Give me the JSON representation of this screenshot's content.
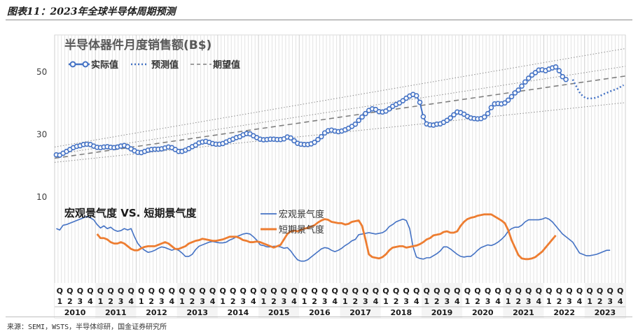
{
  "figure_title": "图表11：2023年全球半导体周期预测",
  "source": "来源：SEMI，WSTS，半导体综研，国金证券研究所",
  "chart_data": [
    {
      "type": "line",
      "title": "半导体器件月度销售额(B$)",
      "legend": {
        "placement": "top-left",
        "entries": [
          "实际值",
          "预测值",
          "期望值"
        ]
      },
      "yticks": [
        10,
        30,
        50
      ],
      "ylim": [
        10,
        58
      ],
      "x_range": [
        "2010-01",
        "2023-12"
      ],
      "grid": "vertical monthly",
      "colors": {
        "actual": "#4472c4",
        "forecast": "#4472c4",
        "trend": "#7f7f7f",
        "band": "#8c8c8c"
      },
      "actual": {
        "name": "实际值",
        "start": "2010-01",
        "values": [
          23.5,
          23.4,
          24.0,
          24.6,
          25.2,
          25.8,
          26.2,
          26.4,
          26.8,
          26.9,
          26.8,
          26.3,
          25.9,
          25.8,
          26.0,
          26.1,
          25.9,
          25.8,
          26.0,
          26.3,
          26.5,
          26.1,
          25.4,
          24.8,
          24.3,
          24.2,
          24.6,
          25.0,
          25.2,
          25.3,
          25.3,
          25.4,
          25.7,
          26.0,
          25.8,
          25.2,
          24.6,
          24.6,
          25.0,
          25.5,
          26.1,
          26.6,
          27.3,
          27.6,
          27.8,
          27.5,
          27.1,
          26.9,
          26.9,
          27.1,
          27.6,
          28.1,
          28.5,
          29.0,
          29.3,
          29.9,
          30.3,
          30.2,
          29.6,
          29.0,
          28.5,
          28.3,
          28.4,
          28.5,
          28.5,
          28.4,
          28.4,
          28.6,
          29.2,
          28.9,
          28.0,
          27.2,
          26.9,
          26.8,
          26.8,
          27.0,
          27.5,
          28.4,
          29.3,
          30.5,
          31.2,
          31.4,
          31.1,
          30.9,
          31.1,
          31.5,
          32.0,
          32.6,
          33.3,
          34.5,
          35.6,
          36.7,
          37.7,
          38.2,
          38.0,
          37.3,
          37.2,
          37.5,
          38.2,
          39.0,
          39.6,
          40.1,
          40.8,
          41.6,
          42.3,
          42.8,
          42.4,
          40.3,
          35.7,
          33.4,
          33.1,
          33.0,
          33.3,
          33.4,
          33.9,
          34.5,
          35.3,
          36.3,
          37.2,
          37.0,
          36.5,
          35.8,
          35.3,
          35.1,
          35.0,
          35.1,
          35.6,
          36.7,
          38.6,
          39.8,
          39.9,
          39.8,
          40.1,
          41.0,
          42.1,
          43.3,
          44.2,
          45.5,
          46.8,
          48.0,
          49.0,
          49.8,
          50.6,
          50.7,
          50.4,
          50.9,
          51.3,
          51.6,
          50.4,
          48.5,
          47.6
        ]
      },
      "forecast": {
        "name": "预测值",
        "start": "2022-09",
        "values": [
          47.6,
          45.5,
          43.5,
          42.2,
          41.6,
          41.5,
          41.6,
          41.8,
          42.3,
          42.9,
          43.3,
          43.8,
          44.2,
          44.6,
          45.2,
          45.8
        ]
      },
      "trend": {
        "name": "期望值",
        "start": "2010-01",
        "end": "2023-12",
        "values": [
          22.4,
          48.7
        ]
      },
      "upper_band": {
        "start": "2010-01",
        "end": "2023-12",
        "values": [
          26.0,
          57.5
        ]
      },
      "middle_band": {
        "start": "2010-01",
        "end": "2023-12",
        "values": [
          23.6,
          51.8
        ]
      },
      "lower_band": {
        "start": "2010-01",
        "end": "2023-12",
        "values": [
          21.1,
          40.2
        ]
      }
    },
    {
      "type": "line",
      "title": "宏观景气度 VS. 短期景气度",
      "legend": {
        "placement": "top-center",
        "entries": [
          "宏观景气度",
          "短期景气度"
        ]
      },
      "ylim": [
        0,
        100
      ],
      "colors": {
        "macro": "#4472c4",
        "short_term": "#ed7d31"
      },
      "macro": {
        "name": "宏观景气度",
        "start": "2010-01",
        "values": [
          72,
          70,
          77,
          78,
          80,
          82,
          84,
          86,
          88,
          90,
          88,
          85,
          78,
          73,
          76,
          72,
          74,
          70,
          68,
          69,
          72,
          70,
          72,
          60,
          50,
          44,
          40,
          37,
          38,
          40,
          43,
          45,
          44,
          42,
          40,
          42,
          40,
          36,
          31,
          31,
          34,
          41,
          46,
          48,
          50,
          52,
          53,
          52,
          51,
          51,
          52,
          55,
          57,
          60,
          62,
          64,
          65,
          64,
          60,
          55,
          48,
          47,
          45,
          45,
          46,
          46,
          45,
          43,
          44,
          39,
          32,
          26,
          24,
          24,
          26,
          30,
          34,
          38,
          42,
          44,
          43,
          40,
          38,
          40,
          43,
          47,
          50,
          54,
          56,
          63,
          64,
          65,
          66,
          65,
          64,
          65,
          66,
          69,
          75,
          78,
          82,
          84,
          86,
          84,
          72,
          45,
          30,
          28,
          27,
          29,
          29,
          32,
          35,
          39,
          45,
          45,
          42,
          38,
          34,
          31,
          30,
          31,
          31,
          35,
          40,
          44,
          46,
          48,
          47,
          49,
          52,
          56,
          61,
          68,
          72,
          74,
          74,
          77,
          82,
          85,
          85,
          85,
          85,
          86,
          88,
          86,
          82,
          76,
          70,
          64,
          60,
          56,
          52,
          44,
          36,
          34,
          32,
          32,
          33,
          34,
          36,
          38,
          40,
          40
        ]
      },
      "short_term": {
        "name": "短期景气度",
        "start": "2011-01",
        "values": [
          64,
          58,
          58,
          56,
          52,
          50,
          50,
          52,
          50,
          46,
          42,
          40,
          40,
          43,
          45,
          46,
          46,
          46,
          48,
          50,
          52,
          50,
          46,
          42,
          42,
          44,
          46,
          50,
          52,
          54,
          55,
          57,
          56,
          55,
          54,
          54,
          55,
          56,
          58,
          60,
          60,
          60,
          58,
          55,
          54,
          52,
          52,
          53,
          52,
          50,
          48,
          46,
          44,
          46,
          48,
          56,
          64,
          68,
          69,
          68,
          70,
          72,
          73,
          75,
          77,
          81,
          84,
          86,
          85,
          82,
          81,
          80,
          80,
          78,
          79,
          82,
          83,
          84,
          76,
          56,
          34,
          30,
          29,
          28,
          30,
          34,
          40,
          44,
          45,
          46,
          46,
          44,
          45,
          46,
          47,
          49,
          52,
          56,
          58,
          62,
          63,
          64,
          67,
          68,
          66,
          66,
          68,
          76,
          82,
          86,
          88,
          89,
          91,
          92,
          93,
          93,
          93,
          90,
          87,
          84,
          80,
          70,
          55,
          44,
          33,
          28,
          27,
          27,
          28,
          30,
          34,
          38,
          44,
          50,
          56,
          62
        ]
      }
    },
    {
      "type": "table",
      "quarters": [
        "Q1",
        "Q2",
        "Q3",
        "Q4"
      ],
      "years": [
        "2010",
        "2011",
        "2012",
        "2013",
        "2014",
        "2015",
        "2016",
        "2017",
        "2018",
        "2019",
        "2020",
        "2021",
        "2022",
        "2023"
      ]
    }
  ]
}
